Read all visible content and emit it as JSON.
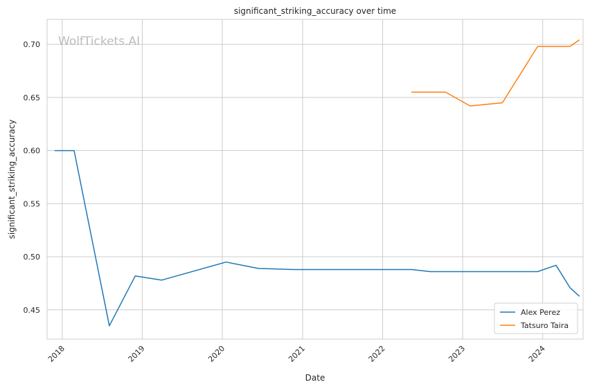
{
  "chart_data": {
    "type": "line",
    "title": "significant_striking_accuracy over time",
    "xlabel": "Date",
    "ylabel": "significant_striking_accuracy",
    "watermark": "WolfTickets.AI",
    "grid": true,
    "legend_position": "bottom-right",
    "xlim": [
      "2017-10-24",
      "2024-07-03"
    ],
    "ylim": [
      0.4225,
      0.7235
    ],
    "x_ticks": [
      "2018",
      "2019",
      "2020",
      "2021",
      "2022",
      "2023",
      "2024"
    ],
    "y_ticks": [
      "0.45",
      "0.50",
      "0.55",
      "0.60",
      "0.65",
      "0.70"
    ],
    "series": [
      {
        "name": "Alex Perez",
        "color": "#1f77b4",
        "points": [
          [
            "2017-11-29",
            0.6
          ],
          [
            "2018-02-24",
            0.6
          ],
          [
            "2018-08-04",
            0.435
          ],
          [
            "2018-11-30",
            0.482
          ],
          [
            "2019-03-30",
            0.478
          ],
          [
            "2020-01-18",
            0.495
          ],
          [
            "2020-06-13",
            0.489
          ],
          [
            "2020-11-21",
            0.488
          ],
          [
            "2022-05-14",
            0.488
          ],
          [
            "2022-08-06",
            0.486
          ],
          [
            "2023-12-09",
            0.486
          ],
          [
            "2024-03-02",
            0.492
          ],
          [
            "2024-05-04",
            0.471
          ],
          [
            "2024-06-15",
            0.463
          ]
        ]
      },
      {
        "name": "Tatsuro Taira",
        "color": "#ff7f0e",
        "points": [
          [
            "2022-05-14",
            0.655
          ],
          [
            "2022-10-15",
            0.655
          ],
          [
            "2023-02-04",
            0.642
          ],
          [
            "2023-07-01",
            0.645
          ],
          [
            "2023-12-09",
            0.698
          ],
          [
            "2024-05-04",
            0.698
          ],
          [
            "2024-06-15",
            0.704
          ]
        ]
      }
    ]
  }
}
